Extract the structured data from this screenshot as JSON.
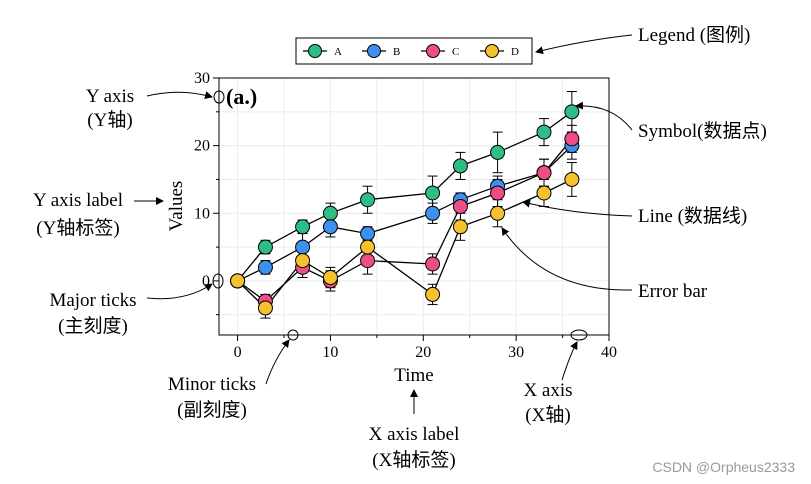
{
  "chart_data": {
    "type": "line",
    "panel_label": "(a.)",
    "xlabel": "Time",
    "ylabel": "Values",
    "xlim": [
      -2,
      40
    ],
    "ylim": [
      -8,
      30
    ],
    "x_ticks": [
      0,
      10,
      20,
      30,
      40
    ],
    "y_ticks": [
      0,
      10,
      20,
      30
    ],
    "x": [
      0,
      3,
      7,
      10,
      14,
      21,
      24,
      28,
      33,
      36
    ],
    "grid": true,
    "legend_position": "top-center",
    "series": [
      {
        "name": "A",
        "color": "#2ebd85",
        "x": [
          0,
          3,
          7,
          10,
          14,
          21,
          24,
          28,
          33,
          36
        ],
        "values": [
          0,
          5,
          8,
          10,
          12,
          13,
          17,
          19,
          22,
          25
        ],
        "errors": [
          0,
          1,
          1,
          1.5,
          2,
          2.5,
          2,
          3,
          2,
          3
        ]
      },
      {
        "name": "B",
        "color": "#3d8ff0",
        "x": [
          0,
          3,
          7,
          10,
          14,
          21,
          24,
          28,
          33,
          36
        ],
        "values": [
          0,
          2,
          5,
          8,
          7,
          10,
          12,
          14,
          16,
          20
        ],
        "errors": [
          0,
          1,
          2,
          1.5,
          1,
          1.5,
          1,
          1.5,
          2,
          2
        ]
      },
      {
        "name": "C",
        "color": "#ee4d89",
        "x": [
          0,
          3,
          7,
          10,
          14,
          21,
          24,
          28,
          33,
          36
        ],
        "values": [
          0,
          -3,
          2,
          0,
          3,
          2.5,
          11,
          13,
          16,
          21
        ],
        "errors": [
          0,
          1,
          1.5,
          1.5,
          2,
          1.5,
          2,
          2,
          2,
          2
        ]
      },
      {
        "name": "D",
        "color": "#f6c12f",
        "x": [
          0,
          3,
          7,
          10,
          14,
          21,
          24,
          28,
          33,
          36
        ],
        "values": [
          0,
          -4,
          3,
          0.5,
          5,
          -2,
          8,
          10,
          13,
          15
        ],
        "errors": [
          0,
          1.5,
          2.5,
          1.5,
          2,
          1.5,
          2,
          2,
          2,
          2.5
        ]
      }
    ],
    "annotations": {
      "legend": "Legend (图例)",
      "symbol": "Symbol(数据点)",
      "line": "Line (数据线)",
      "error_bar": "Error bar",
      "y_axis_1": "Y axis",
      "y_axis_2": "(Y轴)",
      "y_axis_label_1": "Y axis label",
      "y_axis_label_2": "(Y轴标签)",
      "major_ticks_1": "Major ticks",
      "major_ticks_2": "(主刻度)",
      "minor_ticks_1": "Minor ticks",
      "minor_ticks_2": "(副刻度)",
      "x_axis_label_1": "X axis label",
      "x_axis_label_2": "(X轴标签)",
      "x_axis_1": "X axis",
      "x_axis_2": "(X轴)",
      "watermark": "CSDN @Orpheus2333"
    }
  }
}
